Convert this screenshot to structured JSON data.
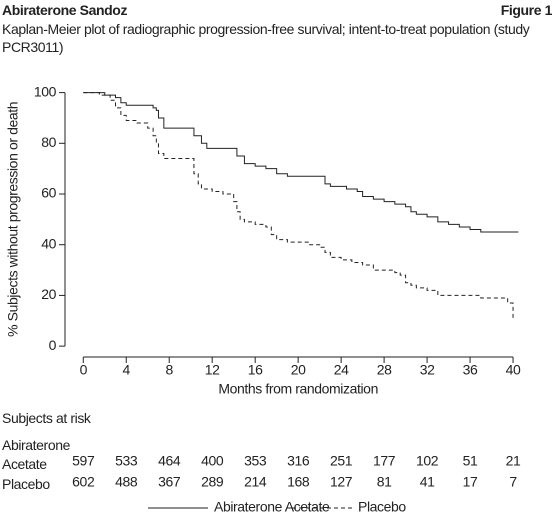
{
  "chart_data": {
    "type": "step_line",
    "title": "Abiraterone Sandoz",
    "figure_label": "Figure 1",
    "subtitle": "Kaplan-Meier plot of radiographic progression-free survival; intent-to-treat population (study PCR3011)",
    "x_label": "Months from randomization",
    "y_label": "% Subjects without progression or death",
    "xlim": [
      -1.7,
      41.3
    ],
    "ylim": [
      -3.5,
      103
    ],
    "xticks": [
      0,
      4,
      8,
      12,
      16,
      20,
      24,
      28,
      32,
      36,
      40
    ],
    "yticks": [
      0,
      20,
      40,
      60,
      80,
      100
    ],
    "series": [
      {
        "name": "Abiraterone Acetate",
        "color": "#222222",
        "dash": "solid",
        "x": [
          0,
          2,
          3,
          3.5,
          4,
          6.5,
          6.8,
          7,
          7.5,
          10.3,
          11,
          11.5,
          14.3,
          15,
          16,
          17,
          18,
          19,
          22.5,
          23,
          24.5,
          25.5,
          26,
          27,
          28,
          29,
          30,
          30.5,
          31,
          32,
          33,
          34,
          35,
          36,
          37,
          40.5
        ],
        "y": [
          100,
          99,
          98,
          96,
          95,
          94,
          93,
          90,
          86,
          83,
          80,
          78,
          75,
          72,
          71,
          70,
          68,
          67,
          64,
          63,
          62,
          61,
          59,
          58,
          57,
          56,
          55,
          53,
          52,
          51,
          49,
          48,
          47,
          46,
          45,
          45
        ]
      },
      {
        "name": "Placebo",
        "color": "#222222",
        "dash": "dashed",
        "x": [
          0,
          1.5,
          2.5,
          3,
          3.5,
          4,
          5,
          6,
          6.5,
          6.8,
          7,
          7.5,
          10.3,
          10.7,
          11,
          12,
          13,
          14,
          14.3,
          14.6,
          15,
          16,
          17,
          17.5,
          18,
          19,
          21,
          22,
          22.5,
          23,
          24,
          25,
          26,
          27,
          29,
          29.5,
          30,
          30.5,
          31,
          32,
          33,
          37,
          39.5,
          40,
          40
        ],
        "y": [
          100,
          99,
          97,
          94,
          91,
          89,
          88,
          86,
          83,
          80,
          76,
          74,
          68,
          64,
          62,
          61,
          60,
          57,
          53,
          50,
          49,
          48,
          47,
          44,
          42,
          41,
          40,
          39,
          37,
          35,
          34,
          33,
          32,
          30,
          29,
          28,
          25,
          24,
          23,
          22,
          20,
          19,
          17,
          15,
          11
        ]
      }
    ],
    "risk_table": {
      "title": "Subjects at risk",
      "rows": [
        {
          "name": "Abiraterone Acetate",
          "values": [
            597,
            533,
            464,
            400,
            353,
            316,
            251,
            177,
            102,
            51,
            21
          ]
        },
        {
          "name": "Placebo",
          "values": [
            602,
            488,
            367,
            289,
            214,
            168,
            127,
            81,
            41,
            17,
            7
          ]
        }
      ]
    }
  }
}
